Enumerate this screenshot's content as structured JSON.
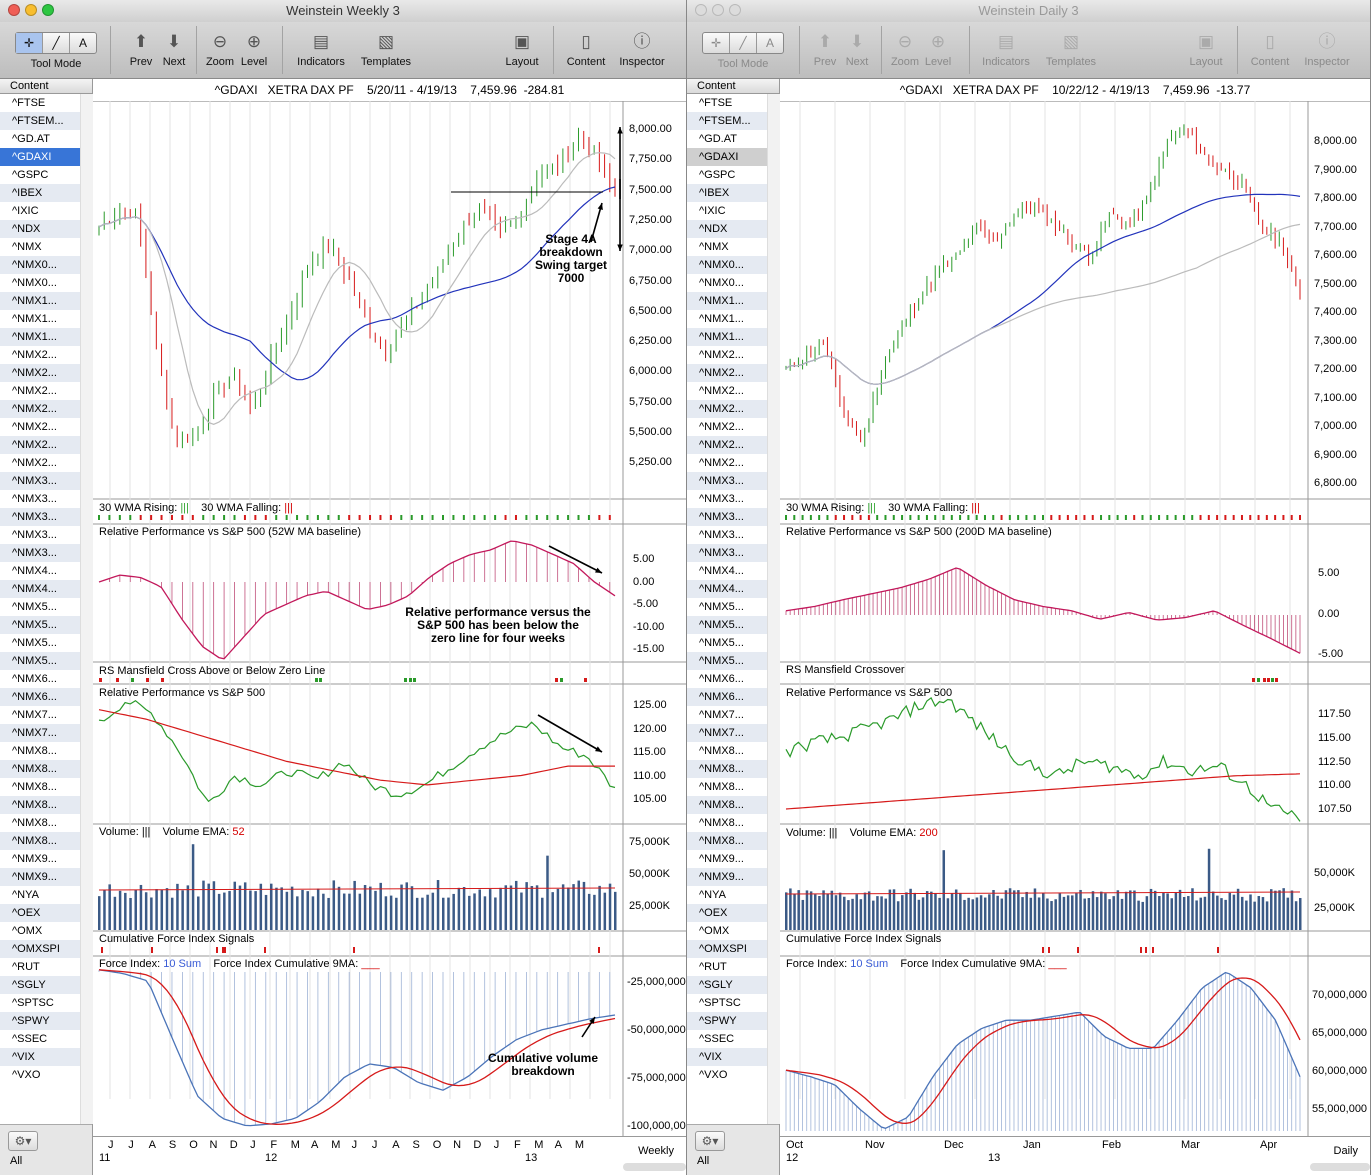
{
  "left": {
    "title": "Weinstein Weekly 3",
    "toolbar": {
      "tool_mode": "Tool Mode",
      "prev": "Prev",
      "next": "Next",
      "zoom": "Zoom",
      "level": "Level",
      "indicators": "Indicators",
      "templates": "Templates",
      "layout": "Layout",
      "content": "Content",
      "inspector": "Inspector"
    },
    "header": {
      "symbol": "^GDAXI",
      "exchange": "XETRA DAX PF",
      "range": "5/20/11 - 4/19/13",
      "last": "7,459.96",
      "change": "-284.81"
    },
    "price_ticks": [
      "8,000.00",
      "7,750.00",
      "7,500.00",
      "7,250.00",
      "7,000.00",
      "6,750.00",
      "6,500.00",
      "6,250.00",
      "6,000.00",
      "5,750.00",
      "5,500.00",
      "5,250.00"
    ],
    "wma": {
      "rising": "30 WMA Rising:",
      "rising_mark": "|||",
      "falling": "30 WMA Falling:",
      "falling_mark": "|||"
    },
    "rp1": {
      "label": "Relative Performance vs S&P 500 (52W MA baseline)",
      "ticks": [
        "5.00",
        "0.00",
        "-5.00",
        "-10.00",
        "-15.00"
      ]
    },
    "rs": {
      "label": "RS Mansfield Cross Above or Below Zero Line"
    },
    "rp2": {
      "label": "Relative Performance vs S&P 500",
      "ticks": [
        "125.00",
        "120.00",
        "115.00",
        "110.00",
        "105.00"
      ]
    },
    "vol": {
      "label": "Volume:",
      "mark": "|||",
      "ema": "Volume EMA:",
      "ema_val": "52",
      "ticks": [
        "75,000K",
        "50,000K",
        "25,000K"
      ]
    },
    "cfis": {
      "label": "Cumulative Force Index Signals"
    },
    "force": {
      "label": "Force Index:",
      "sum": "10 Sum",
      "cum": "Force Index Cumulative 9MA:",
      "ticks": [
        "-25,000,000",
        "-50,000,000",
        "-75,000,000",
        "-100,000,000"
      ]
    },
    "annotations": {
      "stage": [
        "Stage 4A",
        "breakdown",
        "Swing target",
        "7000"
      ],
      "relperf": [
        "Relative performance versus the",
        "S&P 500 has been below the",
        "zero line for four weeks"
      ],
      "cumvol": [
        "Cumulative volume",
        "breakdown"
      ]
    },
    "xaxis": {
      "months": [
        "J",
        "J",
        "A",
        "S",
        "O",
        "N",
        "D",
        "J",
        "F",
        "M",
        "A",
        "M",
        "J",
        "J",
        "A",
        "S",
        "O",
        "N",
        "D",
        "J",
        "F",
        "M",
        "A",
        "M"
      ],
      "years": [
        "11",
        "12",
        "13"
      ],
      "period": "Weekly"
    }
  },
  "right": {
    "title": "Weinstein Daily 3",
    "header": {
      "symbol": "^GDAXI",
      "exchange": "XETRA DAX PF",
      "range": "10/22/12 - 4/19/13",
      "last": "7,459.96",
      "change": "-13.77"
    },
    "price_ticks": [
      "8,000.00",
      "7,900.00",
      "7,800.00",
      "7,700.00",
      "7,600.00",
      "7,500.00",
      "7,400.00",
      "7,300.00",
      "7,200.00",
      "7,100.00",
      "7,000.00",
      "6,900.00",
      "6,800.00"
    ],
    "rp1": {
      "label": "Relative Performance vs S&P 500 (200D MA baseline)",
      "ticks": [
        "5.00",
        "0.00",
        "-5.00"
      ]
    },
    "rs": {
      "label": "RS Mansfield Crossover"
    },
    "rp2": {
      "label": "Relative Performance vs S&P 500",
      "ticks": [
        "117.50",
        "115.00",
        "112.50",
        "110.00",
        "107.50"
      ]
    },
    "vol": {
      "ema_val": "200",
      "ticks": [
        "50,000K",
        "25,000K"
      ]
    },
    "force": {
      "ticks": [
        "70,000,000",
        "65,000,000",
        "60,000,000",
        "55,000,000"
      ]
    },
    "xaxis": {
      "months": [
        "Oct",
        "Nov",
        "Dec",
        "Jan",
        "Feb",
        "Mar",
        "Apr"
      ],
      "years": [
        "12",
        "13"
      ],
      "period": "Daily"
    }
  },
  "sidebar": {
    "header": "Content",
    "items": [
      "^FTSE",
      "^FTSEM...",
      "^GD.AT",
      "^GDAXI",
      "^GSPC",
      "^IBEX",
      "^IXIC",
      "^NDX",
      "^NMX",
      "^NMX0...",
      "^NMX0...",
      "^NMX1...",
      "^NMX1...",
      "^NMX1...",
      "^NMX2...",
      "^NMX2...",
      "^NMX2...",
      "^NMX2...",
      "^NMX2...",
      "^NMX2...",
      "^NMX2...",
      "^NMX3...",
      "^NMX3...",
      "^NMX3...",
      "^NMX3...",
      "^NMX3...",
      "^NMX4...",
      "^NMX4...",
      "^NMX5...",
      "^NMX5...",
      "^NMX5...",
      "^NMX5...",
      "^NMX6...",
      "^NMX6...",
      "^NMX7...",
      "^NMX7...",
      "^NMX8...",
      "^NMX8...",
      "^NMX8...",
      "^NMX8...",
      "^NMX8...",
      "^NMX8...",
      "^NMX9...",
      "^NMX9...",
      "^NYA",
      "^OEX",
      "^OMX",
      "^OMXSPI",
      "^RUT",
      "^SGLY",
      "^SPTSC",
      "^SPWY",
      "^SSEC",
      "^VIX",
      "^VXO"
    ],
    "all": "All"
  },
  "colors": {
    "green": "#2a9a2a",
    "red": "#d61a1a",
    "blue": "#2233bb",
    "pink": "#c2185b",
    "volblue": "#3b5a86"
  },
  "chart_data": [
    {
      "type": "line",
      "title": "^GDAXI XETRA DAX PF weekly",
      "x": [
        "2011-05-20",
        "2011-07",
        "2011-08",
        "2011-09",
        "2011-10",
        "2011-11",
        "2011-12",
        "2012-01",
        "2012-03",
        "2012-05",
        "2012-06",
        "2012-08",
        "2012-09",
        "2012-10",
        "2012-11",
        "2013-01",
        "2013-02",
        "2013-03",
        "2013-04-19"
      ],
      "values": [
        7200,
        7350,
        6600,
        5400,
        5900,
        6000,
        5850,
        6300,
        6950,
        6400,
        6200,
        6800,
        7300,
        7200,
        7050,
        7700,
        7650,
        8000,
        7460
      ]
    },
    {
      "type": "line",
      "title": "^GDAXI XETRA DAX PF daily",
      "x": [
        "2012-10-22",
        "2012-11-15",
        "2012-12-15",
        "2013-01-15",
        "2013-02-15",
        "2013-03-15",
        "2013-04-19"
      ],
      "values": [
        7200,
        6950,
        7650,
        7750,
        7600,
        8050,
        7460
      ]
    }
  ]
}
